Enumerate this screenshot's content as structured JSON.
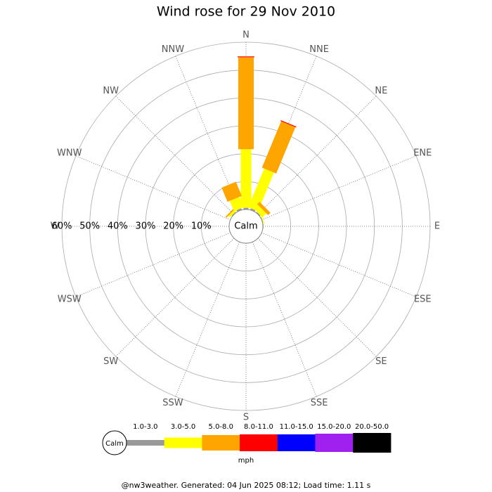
{
  "chart_data": {
    "type": "windrose",
    "title": "Wind rose for 29 Nov 2010",
    "calm_label": "Calm",
    "units": "mph",
    "categories": [
      "N",
      "NNE",
      "NE",
      "ENE",
      "E",
      "ESE",
      "SE",
      "SSE",
      "S",
      "SSW",
      "SW",
      "WSW",
      "W",
      "WNW",
      "NW",
      "NNW"
    ],
    "series": [
      {
        "name": "1.0-3.0",
        "color": "#999999",
        "values": [
          0.6,
          0.6,
          0.4,
          0.2,
          0.2,
          0,
          0,
          0,
          0,
          0,
          0,
          0,
          0,
          0,
          0.3,
          0.6
        ]
      },
      {
        "name": "3.0-5.0",
        "color": "#ffff00",
        "values": [
          21,
          15,
          2,
          0.3,
          0,
          0,
          0,
          0,
          0,
          0,
          0,
          0,
          0,
          0,
          0.8,
          4
        ]
      },
      {
        "name": "5.0-8.0",
        "color": "#ffa500",
        "values": [
          33,
          18,
          1.2,
          0,
          0,
          0,
          0,
          0,
          0,
          0,
          0,
          0,
          0,
          0,
          0.5,
          5.5
        ]
      },
      {
        "name": "8.0-11.0",
        "color": "#ff0000",
        "values": [
          0.3,
          0.3,
          0,
          0,
          0,
          0,
          0,
          0,
          0,
          0,
          0,
          0,
          0,
          0,
          0,
          0
        ]
      },
      {
        "name": "11.0-15.0",
        "color": "#0000ff",
        "values": [
          0,
          0,
          0,
          0,
          0,
          0,
          0,
          0,
          0,
          0,
          0,
          0,
          0,
          0,
          0,
          0
        ]
      },
      {
        "name": "15.0-20.0",
        "color": "#a020f0",
        "values": [
          0,
          0,
          0,
          0,
          0,
          0,
          0,
          0,
          0,
          0,
          0,
          0,
          0,
          0,
          0,
          0
        ]
      },
      {
        "name": "20.0-50.0",
        "color": "#000000",
        "values": [
          0,
          0,
          0,
          0,
          0,
          0,
          0,
          0,
          0,
          0,
          0,
          0,
          0,
          0,
          0,
          0
        ]
      }
    ],
    "rlim": [
      0,
      60
    ],
    "rticks": [
      {
        "value": 10,
        "label": "10%"
      },
      {
        "value": 20,
        "label": "20%"
      },
      {
        "value": 30,
        "label": "30%"
      },
      {
        "value": 40,
        "label": "40%"
      },
      {
        "value": 50,
        "label": "50%"
      },
      {
        "value": 60,
        "label": "60%"
      }
    ],
    "footer": "@nw3weather. Generated: 04 Jun 2025 08:12; Load time: 1.11 s"
  }
}
